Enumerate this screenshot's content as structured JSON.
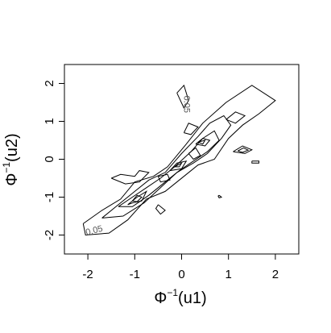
{
  "chart_data": {
    "type": "contour",
    "title": "",
    "xlabel": {
      "base": "Φ",
      "sup": "−1",
      "arg": "(u1)"
    },
    "ylabel": {
      "base": "Φ",
      "sup": "−1",
      "arg": "(u2)"
    },
    "xlim": [
      -2.5,
      2.5
    ],
    "ylim": [
      -2.5,
      2.5
    ],
    "xticks": [
      -2,
      -1,
      0,
      1,
      2
    ],
    "yticks": [
      -2,
      -1,
      0,
      1,
      2
    ],
    "xtick_labels": [
      "-2",
      "-1",
      "0",
      "1",
      "2"
    ],
    "ytick_labels": [
      "-2",
      "-1",
      "0",
      "1",
      "2"
    ],
    "grid": false,
    "level_labels": [
      {
        "text": "0.05",
        "x": -1.85,
        "y": -1.95,
        "angle": -15
      },
      {
        "text": "0.05",
        "x": 0.05,
        "y": 1.45,
        "angle": 90
      }
    ],
    "contours": [
      [
        [
          -2.1,
          -1.7
        ],
        [
          -1.7,
          -1.35
        ],
        [
          -1.3,
          -1.05
        ],
        [
          -1.0,
          -0.6
        ],
        [
          -0.6,
          -0.45
        ],
        [
          -0.3,
          -0.2
        ],
        [
          0.1,
          0.4
        ],
        [
          0.45,
          0.95
        ],
        [
          0.95,
          1.5
        ],
        [
          1.5,
          1.95
        ],
        [
          2.0,
          1.55
        ],
        [
          1.65,
          1.2
        ],
        [
          1.3,
          0.9
        ],
        [
          1.0,
          0.55
        ],
        [
          0.7,
          0.0
        ],
        [
          0.35,
          -0.15
        ],
        [
          0.05,
          -0.45
        ],
        [
          -0.35,
          -0.85
        ],
        [
          -0.75,
          -1.05
        ],
        [
          -1.15,
          -1.6
        ],
        [
          -1.55,
          -1.95
        ],
        [
          -2.05,
          -2.0
        ],
        [
          -2.1,
          -1.7
        ]
      ],
      [
        [
          -1.7,
          -1.55
        ],
        [
          -1.35,
          -1.2
        ],
        [
          -1.0,
          -0.85
        ],
        [
          -0.7,
          -0.55
        ],
        [
          -0.35,
          -0.35
        ],
        [
          0.0,
          0.15
        ],
        [
          0.35,
          0.6
        ],
        [
          0.6,
          0.95
        ],
        [
          0.9,
          1.15
        ],
        [
          1.05,
          0.9
        ],
        [
          0.85,
          0.55
        ],
        [
          0.55,
          0.15
        ],
        [
          0.25,
          -0.1
        ],
        [
          -0.1,
          -0.35
        ],
        [
          -0.45,
          -0.75
        ],
        [
          -0.8,
          -1.15
        ],
        [
          -1.25,
          -1.5
        ],
        [
          -1.7,
          -1.55
        ]
      ],
      [
        [
          -1.35,
          -1.25
        ],
        [
          -1.05,
          -1.0
        ],
        [
          -0.75,
          -0.75
        ],
        [
          -0.45,
          -0.5
        ],
        [
          -0.15,
          -0.2
        ],
        [
          0.2,
          0.2
        ],
        [
          0.45,
          0.55
        ],
        [
          0.7,
          0.75
        ],
        [
          0.8,
          0.5
        ],
        [
          0.55,
          0.2
        ],
        [
          0.25,
          -0.05
        ],
        [
          -0.05,
          -0.3
        ],
        [
          -0.35,
          -0.6
        ],
        [
          -0.7,
          -0.95
        ],
        [
          -1.05,
          -1.25
        ],
        [
          -1.35,
          -1.25
        ]
      ],
      [
        [
          -1.15,
          -1.2
        ],
        [
          -0.95,
          -1.0
        ],
        [
          -0.75,
          -0.85
        ],
        [
          -0.85,
          -1.1
        ],
        [
          -1.05,
          -1.15
        ],
        [
          -1.15,
          -1.2
        ]
      ],
      [
        [
          -1.05,
          -1.1
        ],
        [
          -0.95,
          -0.95
        ],
        [
          -0.85,
          -1.0
        ],
        [
          -0.95,
          -1.12
        ],
        [
          -1.05,
          -1.1
        ]
      ],
      [
        [
          0.3,
          0.4
        ],
        [
          0.45,
          0.55
        ],
        [
          0.6,
          0.5
        ],
        [
          0.5,
          0.35
        ],
        [
          0.3,
          0.4
        ]
      ],
      [
        [
          0.35,
          0.45
        ],
        [
          0.5,
          0.5
        ],
        [
          0.45,
          0.4
        ],
        [
          0.35,
          0.45
        ]
      ],
      [
        [
          -0.25,
          -0.3
        ],
        [
          -0.1,
          -0.1
        ],
        [
          0.1,
          -0.05
        ],
        [
          0.0,
          -0.25
        ],
        [
          -0.25,
          -0.3
        ]
      ],
      [
        [
          -0.15,
          -0.2
        ],
        [
          0.0,
          -0.1
        ],
        [
          -0.05,
          -0.2
        ],
        [
          -0.15,
          -0.2
        ]
      ],
      [
        [
          0.05,
          0.7
        ],
        [
          0.15,
          0.95
        ],
        [
          0.35,
          0.85
        ],
        [
          0.2,
          0.65
        ],
        [
          0.05,
          0.7
        ]
      ],
      [
        [
          0.95,
          1.05
        ],
        [
          1.15,
          1.25
        ],
        [
          1.35,
          1.15
        ],
        [
          1.15,
          0.95
        ],
        [
          0.95,
          1.05
        ]
      ],
      [
        [
          1.1,
          0.2
        ],
        [
          1.3,
          0.35
        ],
        [
          1.5,
          0.25
        ],
        [
          1.35,
          0.15
        ],
        [
          1.1,
          0.2
        ]
      ],
      [
        [
          1.2,
          0.22
        ],
        [
          1.32,
          0.3
        ],
        [
          1.42,
          0.24
        ],
        [
          1.3,
          0.18
        ],
        [
          1.2,
          0.22
        ]
      ],
      [
        [
          1.5,
          -0.05
        ],
        [
          1.65,
          -0.05
        ],
        [
          1.65,
          -0.1
        ],
        [
          1.5,
          -0.1
        ],
        [
          1.5,
          -0.05
        ]
      ],
      [
        [
          -0.5,
          -1.2
        ],
        [
          -0.35,
          -1.35
        ],
        [
          -0.45,
          -1.45
        ],
        [
          -0.55,
          -1.3
        ],
        [
          -0.5,
          -1.2
        ]
      ],
      [
        [
          0.8,
          -0.95
        ],
        [
          0.85,
          -1.0
        ],
        [
          0.8,
          -1.02
        ],
        [
          0.78,
          -0.97
        ],
        [
          0.8,
          -0.95
        ]
      ],
      [
        [
          -0.1,
          1.75
        ],
        [
          0.05,
          1.95
        ],
        [
          0.15,
          1.55
        ],
        [
          0.05,
          1.35
        ],
        [
          -0.1,
          1.75
        ]
      ],
      [
        [
          -1.5,
          -0.5
        ],
        [
          -1.3,
          -0.4
        ],
        [
          -1.0,
          -0.45
        ],
        [
          -0.9,
          -0.3
        ],
        [
          -0.7,
          -0.35
        ],
        [
          -0.9,
          -0.6
        ],
        [
          -1.2,
          -0.65
        ],
        [
          -1.5,
          -0.5
        ]
      ],
      [
        [
          -0.5,
          -0.45
        ],
        [
          -0.3,
          -0.4
        ],
        [
          -0.25,
          -0.55
        ],
        [
          -0.45,
          -0.6
        ],
        [
          -0.5,
          -0.45
        ]
      ],
      [
        [
          0.15,
          0.15
        ],
        [
          0.3,
          0.3
        ],
        [
          0.4,
          0.1
        ],
        [
          0.25,
          0.0
        ],
        [
          0.15,
          0.15
        ]
      ]
    ]
  }
}
